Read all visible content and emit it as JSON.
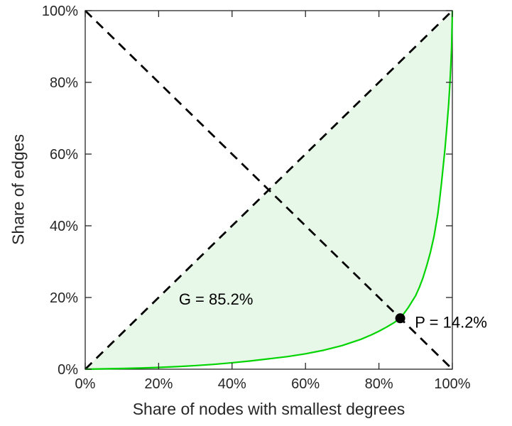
{
  "chart_data": {
    "type": "area",
    "title": "",
    "xlabel": "Share of nodes with smallest degrees",
    "ylabel": "Share of edges",
    "xlim": [
      0,
      100
    ],
    "ylim": [
      0,
      100
    ],
    "x_ticks": [
      0,
      20,
      40,
      60,
      80,
      100
    ],
    "y_ticks": [
      0,
      20,
      40,
      60,
      80,
      100
    ],
    "tick_suffix": "%",
    "grid": false,
    "legend": null,
    "colors": {
      "curve": "#00d400",
      "curve_fill": "#e8f8e8",
      "dashed_lines": "#000000",
      "axis": "#262626",
      "marker": "#000000",
      "annotation_text": "#000000"
    },
    "series": [
      {
        "name": "lorenz-curve",
        "type": "line",
        "style": "solid",
        "color": "#00d400",
        "points": [
          [
            0,
            0
          ],
          [
            5,
            0.1
          ],
          [
            10,
            0.2
          ],
          [
            15,
            0.32
          ],
          [
            20,
            0.5
          ],
          [
            25,
            0.72
          ],
          [
            30,
            1.0
          ],
          [
            35,
            1.35
          ],
          [
            40,
            1.8
          ],
          [
            45,
            2.3
          ],
          [
            50,
            2.9
          ],
          [
            55,
            3.5
          ],
          [
            60,
            4.3
          ],
          [
            65,
            5.3
          ],
          [
            70,
            6.6
          ],
          [
            75,
            8.3
          ],
          [
            78,
            9.6
          ],
          [
            80,
            10.6
          ],
          [
            82,
            11.7
          ],
          [
            84,
            12.9
          ],
          [
            85.8,
            14.2
          ],
          [
            87,
            15.8
          ],
          [
            88,
            17.2
          ],
          [
            90,
            20.5
          ],
          [
            91,
            22.8
          ],
          [
            92,
            25.5
          ],
          [
            93,
            28.8
          ],
          [
            94,
            32.5
          ],
          [
            95,
            37
          ],
          [
            96,
            43
          ],
          [
            96.5,
            47
          ],
          [
            97,
            51.5
          ],
          [
            97.5,
            56.5
          ],
          [
            98,
            61.5
          ],
          [
            98.5,
            67.5
          ],
          [
            99,
            74
          ],
          [
            99.3,
            79
          ],
          [
            99.6,
            85
          ],
          [
            99.8,
            90
          ],
          [
            100,
            100
          ]
        ]
      },
      {
        "name": "equality-diagonal",
        "type": "line",
        "style": "dashed",
        "color": "#000000",
        "points": [
          [
            0,
            0
          ],
          [
            100,
            100
          ]
        ]
      },
      {
        "name": "anti-diagonal",
        "type": "line",
        "style": "dashed",
        "color": "#000000",
        "points": [
          [
            0,
            100
          ],
          [
            100,
            0
          ]
        ]
      }
    ],
    "marker_point": {
      "x": 85.8,
      "y": 14.2,
      "radius": 7,
      "color": "#000000"
    },
    "annotations": [
      {
        "id": "gini-label",
        "text": "G = 85.2%",
        "x": 25.5,
        "y": 19.6
      },
      {
        "id": "p-label",
        "text": "P = 14.2%",
        "x": 89.8,
        "y": 13.2
      }
    ]
  }
}
